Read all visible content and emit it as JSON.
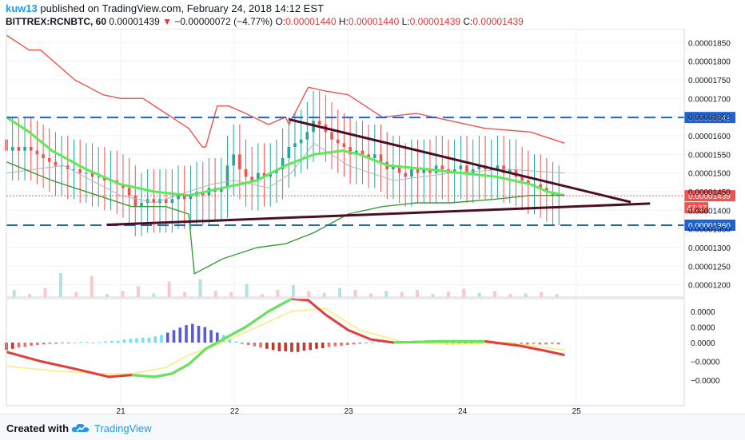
{
  "header": {
    "author": "kuw13",
    "published_text": "published on TradingView.com, February 24, 2018 14:12 EST",
    "symbol": "BITTREX:RCNBTC, 60",
    "last_price": "0.00001439",
    "change_arrow": "▼",
    "change": "−0.00000072 (−4.77%)",
    "o_label": "O:",
    "o_value": "0.00001440",
    "h_label": "H:",
    "h_value": "0.00001440",
    "l_label": "L:",
    "l_value": "0.00001439",
    "c_label": "C:",
    "c_value": "0.00001439"
  },
  "footer": {
    "created_with": "Created with",
    "brand": "TradingView"
  },
  "colors": {
    "up": "#26a69a",
    "down": "#ef5350",
    "accent": "#2196f3",
    "level_line": "#1e63d6",
    "trendline": "#4a0f25",
    "ema_fast": "#ef5350",
    "ema_green": "#5ee85a",
    "signal": "#f5ee7a"
  },
  "chart_data": [
    {
      "type": "candlestick",
      "title": "BITTREX:RCNBTC, 60",
      "x_ticks": [
        "21",
        "22",
        "23",
        "24",
        "25"
      ],
      "y_ticks": [
        "0.00001850",
        "0.00001800",
        "0.00001750",
        "0.00001700",
        "0.00001650",
        "0.00001600",
        "0.00001550",
        "0.00001500",
        "0.00001450",
        "0.00001400",
        "0.00001350",
        "0.00001300",
        "0.00001250",
        "0.00001200"
      ],
      "ylim": [
        1.18e-05,
        1.87e-05
      ],
      "horizontal_levels": [
        {
          "value": 1.649e-05,
          "label": "0.00001649"
        },
        {
          "value": 1.36e-05,
          "label": "0.00001360"
        }
      ],
      "price_label": {
        "value": 1.439e-05,
        "label": "0.00001439"
      },
      "countdown_label": "47:37",
      "trendlines": [
        {
          "from": {
            "x": 22.48,
            "y": 1.644e-05
          },
          "to": {
            "x": 25.48,
            "y": 1.422e-05
          }
        },
        {
          "from": {
            "x": 20.88,
            "y": 1.361e-05
          },
          "to": {
            "x": 25.65,
            "y": 1.418e-05
          }
        }
      ],
      "candles_close": [
        1.56e-05,
        1.57e-05,
        1.56e-05,
        1.57e-05,
        1.56e-05,
        1.55e-05,
        1.54e-05,
        1.53e-05,
        1.52e-05,
        1.52e-05,
        1.51e-05,
        1.51e-05,
        1.5e-05,
        1.5e-05,
        1.49e-05,
        1.49e-05,
        1.48e-05,
        1.48e-05,
        1.47e-05,
        1.46e-05,
        1.44e-05,
        1.41e-05,
        1.42e-05,
        1.43e-05,
        1.42e-05,
        1.43e-05,
        1.42e-05,
        1.43e-05,
        1.44e-05,
        1.43e-05,
        1.44e-05,
        1.45e-05,
        1.44e-05,
        1.46e-05,
        1.45e-05,
        1.46e-05,
        1.52e-05,
        1.55e-05,
        1.51e-05,
        1.49e-05,
        1.48e-05,
        1.5e-05,
        1.49e-05,
        1.5e-05,
        1.51e-05,
        1.54e-05,
        1.57e-05,
        1.58e-05,
        1.59e-05,
        1.61e-05,
        1.64e-05,
        1.63e-05,
        1.61e-05,
        1.59e-05,
        1.58e-05,
        1.57e-05,
        1.55e-05,
        1.56e-05,
        1.55e-05,
        1.54e-05,
        1.55e-05,
        1.53e-05,
        1.51e-05,
        1.52e-05,
        1.5e-05,
        1.49e-05,
        1.51e-05,
        1.5e-05,
        1.51e-05,
        1.5e-05,
        1.52e-05,
        1.51e-05,
        1.5e-05,
        1.51e-05,
        1.52e-05,
        1.5e-05,
        1.51e-05,
        1.52e-05,
        1.51e-05,
        1.51e-05,
        1.52e-05,
        1.5e-05,
        1.51e-05,
        1.49e-05,
        1.48e-05,
        1.47e-05,
        1.47e-05,
        1.46e-05,
        1.45e-05,
        1.44e-05,
        1.44e-05
      ],
      "ema_red": [
        1.87e-05,
        1.83e-05,
        1.83e-05,
        1.75e-05,
        1.71e-05,
        1.7e-05,
        1.7e-05,
        1.66e-05,
        1.62e-05,
        1.57e-05,
        1.57e-05,
        1.68e-05,
        1.68e-05,
        1.66e-05,
        1.63e-05,
        1.65e-05,
        1.63e-05,
        1.73e-05,
        1.72e-05,
        1.71e-05,
        1.65e-05,
        1.66e-05,
        1.64e-05,
        1.62e-05,
        1.61e-05,
        1.58e-05
      ],
      "ema_red_x": [
        20.0,
        20.2,
        20.3,
        20.6,
        20.85,
        21.0,
        21.2,
        21.4,
        21.6,
        21.72,
        21.75,
        21.85,
        21.95,
        22.1,
        22.3,
        22.45,
        22.48,
        22.65,
        22.8,
        23.0,
        23.3,
        23.6,
        23.9,
        24.2,
        24.6,
        24.9
      ],
      "ema_green_close": [
        1.65e-05,
        1.61e-05,
        1.56e-05,
        1.51e-05,
        1.47e-05,
        1.45e-05,
        1.44e-05,
        1.46e-05,
        1.48e-05,
        1.52e-05,
        1.55e-05,
        1.56e-05,
        1.55e-05,
        1.52e-05,
        1.51e-05,
        1.5e-05,
        1.49e-05,
        1.47e-05,
        1.45e-05,
        1.44e-05
      ],
      "ema_green_x": [
        20.0,
        20.2,
        20.4,
        20.7,
        21.0,
        21.3,
        21.6,
        21.9,
        22.2,
        22.45,
        22.7,
        22.95,
        23.1,
        23.35,
        23.7,
        24.0,
        24.3,
        24.6,
        24.75,
        24.9
      ],
      "grey_line": [
        1.5e-05,
        1.52e-05,
        1.44e-05,
        1.42e-05,
        1.45e-05,
        1.47e-05,
        1.48e-05,
        1.46e-05,
        1.5e-05,
        1.58e-05,
        1.52e-05,
        1.48e-05,
        1.5e-05,
        1.51e-05,
        1.5e-05
      ],
      "grey_line_x": [
        20.0,
        20.5,
        21.0,
        21.3,
        21.6,
        21.8,
        22.0,
        22.3,
        22.5,
        22.7,
        23.0,
        23.4,
        23.9,
        24.4,
        24.9
      ],
      "green_line": [
        1.53e-05,
        1.48e-05,
        1.44e-05,
        1.41e-05,
        1.41e-05,
        1.39e-05,
        1.23e-05,
        1.27e-05,
        1.3e-05,
        1.31e-05,
        1.34e-05,
        1.39e-05,
        1.41e-05,
        1.42e-05,
        1.42e-05,
        1.43e-05,
        1.44e-05,
        1.44e-05
      ],
      "green_line_x": [
        20.0,
        20.4,
        20.8,
        21.1,
        21.4,
        21.6,
        21.65,
        21.9,
        22.2,
        22.45,
        22.7,
        23.0,
        23.3,
        23.6,
        23.9,
        24.3,
        24.6,
        24.9
      ],
      "volume": [
        0.12,
        0.05,
        0.15,
        0.4,
        0.08,
        0.35,
        0.05,
        0.1,
        0.18,
        0.06,
        0.26,
        0.08,
        0.3,
        0.1,
        0.08,
        0.22,
        0.05,
        0.12,
        0.2,
        0.1,
        0.07,
        0.15,
        0.12,
        0.06,
        0.1,
        0.08,
        0.12,
        0.05,
        0.09,
        0.14,
        0.07,
        0.1,
        0.05,
        0.06,
        0.08,
        0.05
      ]
    },
    {
      "type": "macd",
      "y_ticks": [
        "0.0000",
        "0.0000",
        "0.0000",
        "−0.0000",
        "−0.0000"
      ],
      "macd_x": [
        20.0,
        20.3,
        20.6,
        20.9,
        21.1,
        21.3,
        21.45,
        21.6,
        21.75,
        21.9,
        22.1,
        22.3,
        22.5,
        22.65,
        22.8,
        23.0,
        23.2,
        23.4,
        23.8,
        24.2,
        24.5,
        24.7,
        24.9
      ],
      "macd": [
        -0.15,
        -0.3,
        -0.42,
        -0.55,
        -0.52,
        -0.55,
        -0.5,
        -0.35,
        -0.1,
        0.05,
        0.25,
        0.5,
        0.7,
        0.68,
        0.45,
        0.2,
        0.05,
        0.0,
        0.02,
        0.02,
        -0.05,
        -0.12,
        -0.2
      ],
      "signal_x": [
        20.0,
        20.4,
        20.8,
        21.1,
        21.4,
        21.6,
        21.9,
        22.2,
        22.5,
        22.8,
        23.1,
        23.5,
        24.0,
        24.4,
        24.9
      ],
      "signal": [
        -0.38,
        -0.45,
        -0.5,
        -0.5,
        -0.4,
        -0.2,
        0.0,
        0.25,
        0.5,
        0.55,
        0.2,
        0.0,
        -0.02,
        0.0,
        -0.12
      ],
      "histogram": [
        -0.12,
        -0.1,
        -0.08,
        -0.07,
        -0.05,
        -0.04,
        -0.03,
        -0.02,
        -0.02,
        -0.01,
        -0.01,
        0.0,
        0.01,
        0.01,
        0.0,
        0.01,
        0.02,
        0.03,
        0.03,
        0.05,
        0.06,
        0.07,
        0.08,
        0.08,
        0.1,
        0.12,
        0.16,
        0.2,
        0.24,
        0.28,
        0.3,
        0.27,
        0.25,
        0.2,
        0.16,
        0.12,
        0.06,
        0.02,
        -0.02,
        -0.04,
        -0.06,
        -0.08,
        -0.1,
        -0.12,
        -0.14,
        -0.14,
        -0.15,
        -0.15,
        -0.13,
        -0.12,
        -0.1,
        -0.09,
        -0.07,
        -0.06,
        -0.05,
        -0.04,
        -0.03,
        -0.02,
        -0.01,
        0.0,
        0.01,
        0.02,
        0.02,
        0.03,
        0.02,
        0.02,
        0.01,
        0.01,
        0.0,
        -0.01,
        -0.02,
        -0.03,
        -0.03,
        -0.03,
        -0.02,
        -0.02,
        -0.01,
        -0.01,
        -0.02,
        -0.03,
        -0.03,
        -0.02,
        -0.02,
        -0.03,
        -0.03,
        -0.02,
        -0.03,
        -0.03,
        -0.02,
        -0.03
      ]
    }
  ]
}
